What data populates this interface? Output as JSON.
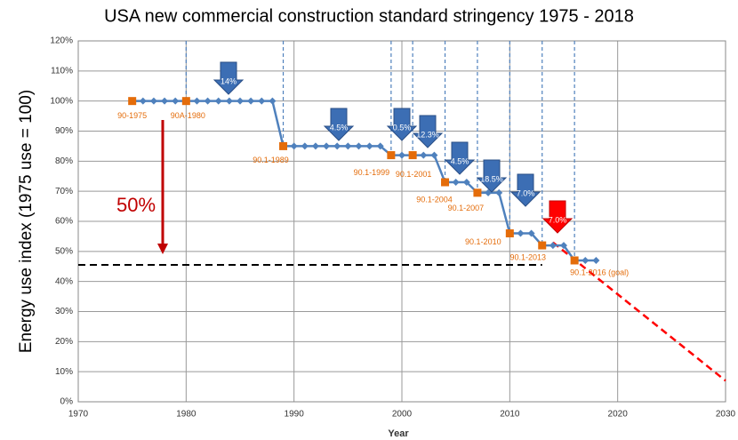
{
  "chart_data": {
    "type": "line",
    "title": "USA new commercial construction standard stringency 1975 - 2018",
    "x_label": "Year",
    "y_label": "Energy use index (1975 use = 100)",
    "xlim": [
      1970,
      2030
    ],
    "xticks": [
      1970,
      1980,
      1990,
      2000,
      2010,
      2020,
      2030
    ],
    "ylim": [
      0,
      120
    ],
    "yticks": [
      {
        "value": 0,
        "label": "0%"
      },
      {
        "value": 10,
        "label": "10%"
      },
      {
        "value": 20,
        "label": "20%"
      },
      {
        "value": 30,
        "label": "30%"
      },
      {
        "value": 40,
        "label": "40%"
      },
      {
        "value": 50,
        "label": "50%"
      },
      {
        "value": 60,
        "label": "60%"
      },
      {
        "value": 70,
        "label": "70%"
      },
      {
        "value": 80,
        "label": "80%"
      },
      {
        "value": 90,
        "label": "90%"
      },
      {
        "value": 100,
        "label": "100%"
      },
      {
        "value": 110,
        "label": "110%"
      },
      {
        "value": 120,
        "label": "120%"
      }
    ],
    "grid": true,
    "series": [
      {
        "color": "#4f81bd",
        "x": [
          1975,
          1976,
          1977,
          1978,
          1979,
          1980,
          1981,
          1982,
          1983,
          1984,
          1985,
          1986,
          1987,
          1988,
          1989,
          1990,
          1991,
          1992,
          1993,
          1994,
          1995,
          1996,
          1997,
          1998,
          1999,
          2000,
          2001,
          2002,
          2003,
          2004,
          2005,
          2006,
          2007,
          2008,
          2009,
          2010,
          2011,
          2012,
          2013,
          2014,
          2015,
          2016,
          2017,
          2018
        ],
        "values": [
          100,
          100,
          100,
          100,
          100,
          100,
          100,
          100,
          100,
          100,
          100,
          100,
          100,
          100,
          85,
          85,
          85,
          85,
          85,
          85,
          85,
          85,
          85,
          85,
          82,
          82,
          82,
          82,
          82,
          73,
          73,
          73,
          69.5,
          69.5,
          69.5,
          56,
          56,
          56,
          52,
          52,
          52,
          47,
          47,
          47
        ]
      }
    ],
    "standards": {
      "color": "#e46c0a",
      "x": [
        1975,
        1980,
        1989,
        1999,
        2001,
        2004,
        2007,
        2010,
        2013,
        2016
      ],
      "values": [
        100,
        100,
        85,
        82,
        82,
        73,
        69.5,
        56,
        52,
        47
      ],
      "labels": [
        "90-1975",
        "90A-1980",
        "90.1-1989",
        "90.1-1999",
        "90.1-2001",
        "90.1-2004",
        "90.1-2007",
        "90.1-2010",
        "90.1-2013",
        "90.1-2016 (goal)"
      ]
    },
    "reductions": [
      "14%",
      "4.5%",
      "0.5%",
      "12.3%",
      "4.5%",
      "18.5%",
      "7.0%",
      "7.0%"
    ],
    "target_label": "50%",
    "reference_line": 45.5,
    "trend": {
      "color": "#ff0000",
      "x": [
        2014,
        2030
      ],
      "values": [
        53,
        7
      ]
    }
  }
}
